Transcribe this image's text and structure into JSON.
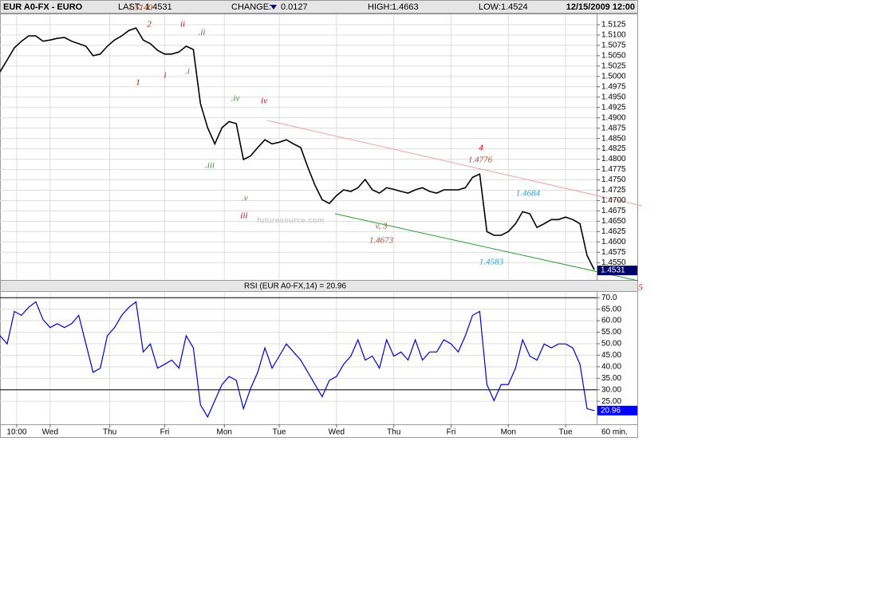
{
  "header": {
    "symbol": "EUR A0-FX - EURO",
    "last_label": "LAST:",
    "last": 1.4531,
    "change_label": "CHANGE:",
    "change": 0.0127,
    "high_label": "HIGH:",
    "high": 1.4663,
    "low_label": "LOW:",
    "low": 1.4524,
    "datetime": "12/15/2009 12:00"
  },
  "chart_data": [
    {
      "type": "line",
      "color": "#000000",
      "x": [
        0,
        3,
        6,
        9,
        12,
        15,
        18,
        21,
        24,
        27,
        30,
        33,
        36,
        39,
        42,
        45,
        48,
        51,
        54,
        57,
        60,
        63,
        66,
        69,
        72,
        75,
        78,
        81,
        84,
        87,
        90,
        93,
        96,
        99,
        102,
        105,
        108,
        111,
        114,
        117,
        120,
        123,
        126,
        129,
        132,
        135,
        138,
        141,
        144,
        147,
        150,
        153,
        156,
        159,
        162,
        165,
        168,
        171,
        174,
        177,
        180,
        183,
        186,
        189,
        192,
        195,
        198,
        201,
        204,
        207,
        210,
        213,
        216,
        219,
        222,
        225,
        228,
        231,
        234,
        237,
        240,
        243,
        246,
        249
      ],
      "values": [
        1.5011,
        1.504,
        1.5069,
        1.5085,
        1.5098,
        1.5098,
        1.5085,
        1.5088,
        1.5092,
        1.5094,
        1.5085,
        1.5079,
        1.5073,
        1.505,
        1.5054,
        1.5073,
        1.5088,
        1.5098,
        1.5111,
        1.5117,
        1.5088,
        1.5079,
        1.5063,
        1.5054,
        1.5054,
        1.5059,
        1.5073,
        1.5065,
        1.4934,
        1.4876,
        1.4837,
        1.4876,
        1.4891,
        1.4886,
        1.4799,
        1.4808,
        1.4828,
        1.4847,
        1.4837,
        1.4841,
        1.4847,
        1.4837,
        1.4828,
        1.478,
        1.4737,
        1.4702,
        1.4693,
        1.4712,
        1.4726,
        1.4722,
        1.4731,
        1.4751,
        1.4726,
        1.4718,
        1.4731,
        1.4727,
        1.4722,
        1.4718,
        1.4726,
        1.4731,
        1.4722,
        1.4718,
        1.4726,
        1.4726,
        1.4726,
        1.4731,
        1.4756,
        1.4764,
        1.4625,
        1.4616,
        1.4616,
        1.4625,
        1.4644,
        1.4673,
        1.4668,
        1.4635,
        1.4644,
        1.4654,
        1.4654,
        1.466,
        1.4654,
        1.4644,
        1.4567,
        1.4533
      ],
      "xlim": [
        0,
        250
      ],
      "ylim": [
        1.451,
        1.515
      ],
      "yticks": [
        {
          "value": 1.455,
          "label": "1.4550"
        },
        1.4575,
        {
          "value": 1.46,
          "label": "1.4600"
        },
        1.4625,
        {
          "value": 1.465,
          "label": "1.4650"
        },
        1.4675,
        {
          "value": 1.47,
          "label": "1.4700"
        },
        1.4725,
        {
          "value": 1.475,
          "label": "1.4750"
        },
        1.4775,
        {
          "value": 1.48,
          "label": "1.4800"
        },
        1.4825,
        {
          "value": 1.485,
          "label": "1.4850"
        },
        1.4875,
        {
          "value": 1.49,
          "label": "1.4900"
        },
        1.4925,
        {
          "value": 1.495,
          "label": "1.4950"
        },
        1.4975,
        {
          "value": 1.5,
          "label": "1.5000"
        },
        1.5025,
        {
          "value": 1.505,
          "label": "1.5050"
        },
        1.5075,
        {
          "value": 1.51,
          "label": "1.5100"
        },
        1.5125
      ],
      "grid": true,
      "watermark": "futuresource.com",
      "annotations": [
        {
          "text": "1.5140",
          "color": "#a0522d"
        },
        {
          "text": "2",
          "color": "#cc0000"
        },
        {
          "text": "ii",
          "color": "#cc0000"
        },
        {
          "text": ".ii",
          "color": "#2e8b2e"
        },
        {
          "text": "1",
          "color": "#cc0000"
        },
        {
          "text": "i",
          "color": "#cc0000"
        },
        {
          "text": ".i",
          "color": "#2e8b2e"
        },
        {
          "text": ".iv",
          "color": "#2e8b2e"
        },
        {
          "text": "iv",
          "color": "#cc0000"
        },
        {
          "text": "4",
          "color": "#cc0000"
        },
        {
          "text": "1.4776",
          "color": "#a0522d"
        },
        {
          "text": "1.4684",
          "color": "#1aa7d8"
        },
        {
          "text": ".iii",
          "color": "#2e8b2e"
        },
        {
          "text": ".v",
          "color": "#2e8b2e"
        },
        {
          "text": "iii",
          "color": "#cc0000"
        },
        {
          "text": "v, 3",
          "color": "#a0522d"
        },
        {
          "text": "1.4673",
          "color": "#a0522d"
        },
        {
          "text": "1.4583",
          "color": "#1aa7d8"
        },
        {
          "text": "5",
          "color": "#cc0000"
        }
      ]
    },
    {
      "type": "line",
      "title": "RSI (EUR A0-FX,14) = 20.96",
      "color": "#0000cc",
      "x": [
        0,
        3,
        6,
        9,
        12,
        15,
        18,
        21,
        24,
        27,
        30,
        33,
        36,
        39,
        42,
        45,
        48,
        51,
        54,
        57,
        60,
        63,
        66,
        69,
        72,
        75,
        78,
        81,
        84,
        87,
        90,
        93,
        96,
        99,
        102,
        105,
        108,
        111,
        114,
        117,
        120,
        123,
        126,
        129,
        132,
        135,
        138,
        141,
        144,
        147,
        150,
        153,
        156,
        159,
        162,
        165,
        168,
        171,
        174,
        177,
        180,
        183,
        186,
        189,
        192,
        195,
        198,
        201,
        204,
        207,
        210,
        213,
        216,
        219,
        222,
        225,
        228,
        231,
        234,
        237,
        240,
        243,
        246,
        249
      ],
      "values": [
        53.5,
        49.9,
        64.0,
        62.3,
        65.8,
        68.2,
        60.5,
        57.0,
        58.7,
        57.0,
        58.7,
        62.3,
        49.9,
        37.6,
        39.4,
        53.5,
        57.0,
        62.3,
        65.8,
        68.2,
        46.4,
        49.9,
        39.4,
        41.1,
        42.9,
        39.4,
        53.5,
        48.2,
        23.5,
        18.2,
        25.3,
        32.3,
        35.8,
        34.1,
        21.8,
        30.6,
        37.6,
        48.2,
        39.4,
        44.6,
        49.9,
        46.4,
        42.9,
        37.6,
        32.3,
        27.0,
        34.1,
        35.8,
        41.1,
        44.6,
        51.7,
        42.9,
        44.6,
        39.4,
        51.7,
        44.6,
        46.4,
        42.9,
        51.7,
        42.9,
        46.4,
        46.4,
        51.7,
        49.9,
        46.4,
        53.5,
        62.3,
        64.0,
        32.3,
        25.3,
        32.3,
        32.3,
        39.4,
        51.7,
        44.6,
        42.9,
        49.9,
        48.2,
        49.9,
        49.9,
        48.2,
        41.1,
        21.8,
        20.96
      ],
      "current": 20.96,
      "xlim": [
        0,
        250
      ],
      "ylim": [
        15,
        72.5
      ],
      "yticks": [
        {
          "value": 25,
          "label": "25.00"
        },
        {
          "value": 30,
          "label": "30.00"
        },
        {
          "value": 35,
          "label": "35.00"
        },
        {
          "value": 40,
          "label": "40.00"
        },
        {
          "value": 45,
          "label": "45.00"
        },
        {
          "value": 50,
          "label": "50.00"
        },
        {
          "value": 55,
          "label": "55.00"
        },
        {
          "value": 60,
          "label": "60.00"
        },
        {
          "value": 65,
          "label": "65.00"
        },
        {
          "value": 70,
          "label": "70.0"
        }
      ],
      "hlines": [
        70,
        30
      ],
      "xticks": [
        {
          "value": 7,
          "label": "10:00"
        },
        {
          "value": 21,
          "label": "Wed"
        },
        {
          "value": 46,
          "label": "Thu"
        },
        {
          "value": 69,
          "label": "Fri"
        },
        {
          "value": 94,
          "label": "Mon"
        },
        {
          "value": 117,
          "label": "Tue"
        },
        {
          "value": 141,
          "label": "Wed"
        },
        {
          "value": 165,
          "label": "Thu"
        },
        {
          "value": 189,
          "label": "Fri"
        },
        {
          "value": 213,
          "label": "Mon"
        },
        {
          "value": 237,
          "label": "Tue"
        }
      ],
      "x_label": "60 min.",
      "grid": true
    }
  ]
}
